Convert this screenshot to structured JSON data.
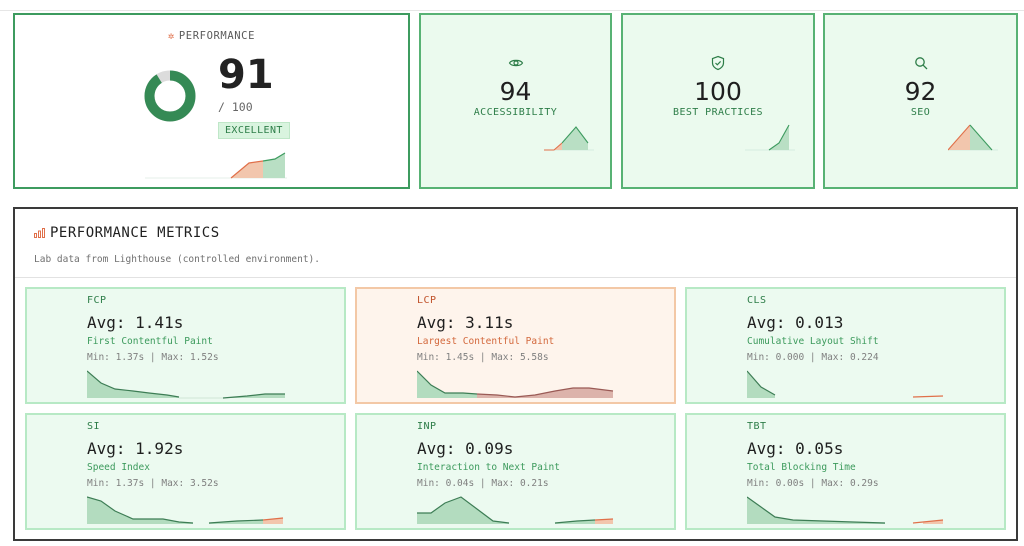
{
  "performance": {
    "label": "PERFORMANCE",
    "score": "91",
    "max": "/ 100",
    "score_value": 91,
    "badge": "EXCELLENT",
    "icon": "asterisk-icon"
  },
  "categories": [
    {
      "key": "accessibility",
      "score": "94",
      "name": "ACCESSIBILITY",
      "icon": "eye-icon"
    },
    {
      "key": "best_practices",
      "score": "100",
      "name": "BEST PRACTICES",
      "icon": "shield-check-icon"
    },
    {
      "key": "seo",
      "score": "92",
      "name": "SEO",
      "icon": "search-icon"
    }
  ],
  "metrics_panel": {
    "title": "PERFORMANCE METRICS",
    "subtitle": "Lab data from Lighthouse (controlled environment).",
    "icon": "bar-chart-icon"
  },
  "metrics": [
    {
      "abbr": "FCP",
      "avg": "Avg: 1.41s",
      "full": "First Contentful Paint",
      "range": "Min: 1.37s | Max: 1.52s",
      "status": "good"
    },
    {
      "abbr": "LCP",
      "avg": "Avg: 3.11s",
      "full": "Largest Contentful Paint",
      "range": "Min: 1.45s | Max: 5.58s",
      "status": "warn"
    },
    {
      "abbr": "CLS",
      "avg": "Avg: 0.013",
      "full": "Cumulative Layout Shift",
      "range": "Min: 0.000 | Max: 0.224",
      "status": "good"
    },
    {
      "abbr": "SI",
      "avg": "Avg: 1.92s",
      "full": "Speed Index",
      "range": "Min: 1.37s | Max: 3.52s",
      "status": "good"
    },
    {
      "abbr": "INP",
      "avg": "Avg: 0.09s",
      "full": "Interaction to Next Paint",
      "range": "Min: 0.04s | Max: 0.21s",
      "status": "good"
    },
    {
      "abbr": "TBT",
      "avg": "Avg: 0.05s",
      "full": "Total Blocking Time",
      "range": "Min: 0.00s | Max: 0.29s",
      "status": "good"
    }
  ],
  "colors": {
    "good": "#3d9b5f",
    "warn": "#e0704a",
    "good_fill": "#b9dfc4",
    "warn_fill": "#f2c6ad"
  }
}
